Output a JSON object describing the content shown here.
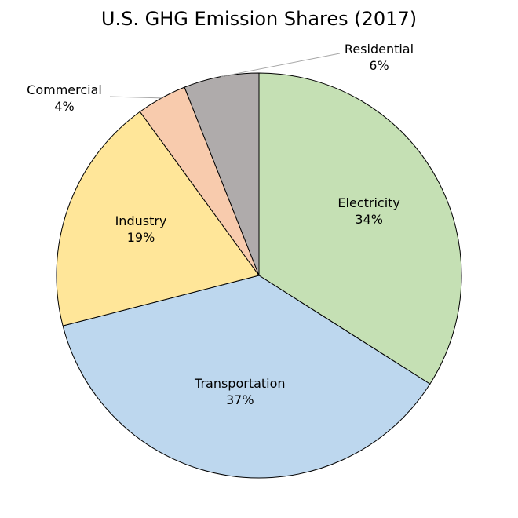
{
  "chart_data": {
    "type": "pie",
    "title": "U.S. GHG Emission Shares (2017)",
    "categories": [
      "Electricity",
      "Transportation",
      "Industry",
      "Commercial",
      "Residential"
    ],
    "values": [
      34,
      37,
      19,
      4,
      6
    ],
    "value_labels": [
      "34%",
      "37%",
      "19%",
      "4%",
      "6%"
    ],
    "colors": [
      "#c5e0b4",
      "#bdd7ee",
      "#ffe699",
      "#f8cbad",
      "#afabab"
    ],
    "start_angle": "12 o'clock",
    "direction": "clockwise",
    "legend": "none"
  }
}
